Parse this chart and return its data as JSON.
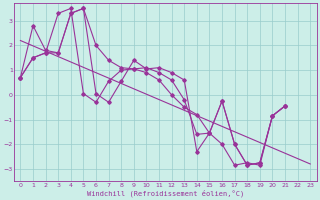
{
  "xlabel": "Windchill (Refroidissement éolien,°C)",
  "bg_color": "#cceee8",
  "line_color": "#993399",
  "grid_color": "#99cccc",
  "xlim": [
    -0.5,
    23.5
  ],
  "ylim": [
    -3.5,
    3.7
  ],
  "yticks": [
    -3,
    -2,
    -1,
    0,
    1,
    2,
    3
  ],
  "xticks": [
    0,
    1,
    2,
    3,
    4,
    5,
    6,
    7,
    8,
    9,
    10,
    11,
    12,
    13,
    14,
    15,
    16,
    17,
    18,
    19,
    20,
    21,
    22,
    23
  ],
  "series": [
    {
      "x": [
        0,
        1,
        2,
        3,
        4,
        5,
        6,
        7,
        8,
        9,
        10,
        11,
        12,
        13,
        14,
        15,
        16,
        17,
        18,
        19,
        20,
        21,
        22,
        23
      ],
      "y": [
        0.7,
        1.5,
        1.7,
        3.3,
        3.5,
        0.05,
        -0.3,
        0.55,
        1.0,
        1.05,
        1.1,
        0.9,
        0.6,
        -0.2,
        -1.6,
        -1.55,
        -0.25,
        -2.0,
        -2.85,
        -2.75,
        -0.85,
        -0.45,
        null,
        null
      ]
    },
    {
      "x": [
        0,
        1,
        2,
        3,
        4,
        5,
        6,
        7,
        8,
        9,
        10,
        11,
        12,
        13,
        14,
        15,
        16,
        17,
        18,
        19,
        20,
        21,
        22,
        23
      ],
      "y": [
        0.7,
        2.8,
        1.8,
        1.7,
        3.3,
        3.5,
        0.05,
        -0.3,
        0.55,
        1.4,
        1.05,
        1.1,
        0.9,
        0.6,
        -2.3,
        -1.55,
        -0.25,
        -2.0,
        -2.85,
        -2.75,
        -0.85,
        -0.45,
        null,
        null
      ]
    },
    {
      "x": [
        0,
        1,
        2,
        3,
        4,
        5,
        6,
        7,
        8,
        9,
        10,
        11,
        12,
        13,
        14,
        15,
        16,
        17,
        18,
        19,
        20,
        21,
        22,
        23
      ],
      "y": [
        0.7,
        1.5,
        1.7,
        1.7,
        3.3,
        3.5,
        2.0,
        1.4,
        1.1,
        1.05,
        0.9,
        0.6,
        0.0,
        -0.5,
        -0.8,
        -1.55,
        -2.0,
        -2.85,
        -2.75,
        -2.85,
        -0.85,
        -0.45,
        null,
        null
      ]
    }
  ],
  "trend": {
    "x": [
      0,
      23
    ],
    "y": [
      2.2,
      -2.8
    ]
  }
}
